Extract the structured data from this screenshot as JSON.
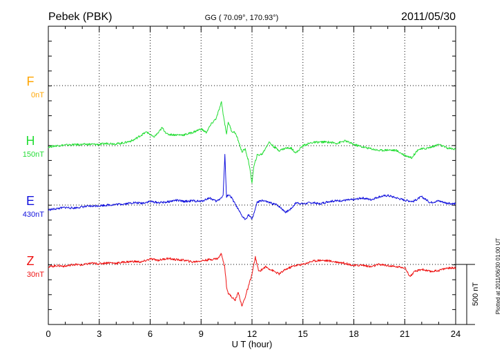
{
  "header": {
    "station": "Pebek (PBK)",
    "coords": "GG ( 70.09°, 170.93°)",
    "date": "2011/05/30"
  },
  "footer": {
    "plotted": "Plotted at 2011/06/30 01:00 UT"
  },
  "chart_data": {
    "type": "line",
    "xlabel": "U T (hour)",
    "xlim": [
      0,
      24
    ],
    "xticks": [
      0,
      3,
      6,
      9,
      12,
      15,
      18,
      21,
      24
    ],
    "scale_bar": {
      "label": "500 nT",
      "value_nT": 500
    },
    "series": [
      {
        "name": "F",
        "baseline": "0nT",
        "color": "#ffa500",
        "x": [],
        "y": []
      },
      {
        "name": "H",
        "baseline": "150nT",
        "color": "#22dd33",
        "x": [
          0,
          0.5,
          1,
          1.5,
          2,
          2.5,
          3,
          3.5,
          4,
          4.5,
          5,
          5.5,
          5.8,
          6.2,
          6.5,
          6.7,
          7,
          7.5,
          8,
          8.5,
          9,
          9.3,
          9.6,
          9.9,
          10.2,
          10.35,
          10.5,
          10.6,
          10.8,
          11,
          11.2,
          11.4,
          11.6,
          11.8,
          12,
          12.1,
          12.3,
          12.6,
          13,
          13.3,
          13.6,
          14,
          14.3,
          14.6,
          15,
          15.5,
          16,
          16.5,
          17,
          17.5,
          18,
          18.5,
          19,
          19.5,
          20,
          20.5,
          21,
          21.4,
          21.8,
          22.2,
          22.6,
          23,
          23.5,
          24
        ],
        "y": [
          -10,
          0,
          5,
          8,
          10,
          12,
          10,
          20,
          15,
          25,
          45,
          90,
          115,
          70,
          110,
          150,
          95,
          90,
          90,
          110,
          140,
          110,
          180,
          230,
          360,
          220,
          100,
          200,
          120,
          110,
          40,
          -50,
          -30,
          -130,
          -310,
          -180,
          -80,
          -70,
          30,
          -10,
          -40,
          -20,
          -20,
          -60,
          0,
          25,
          30,
          30,
          20,
          40,
          10,
          -10,
          -25,
          -40,
          -35,
          -40,
          -80,
          -100,
          -30,
          -25,
          -10,
          10,
          -20,
          -30
        ]
      },
      {
        "name": "E",
        "baseline": "430nT",
        "color": "#1010dd",
        "x": [
          0,
          0.5,
          1,
          1.5,
          2,
          2.5,
          3,
          3.5,
          4,
          4.5,
          5,
          5.5,
          6,
          6.5,
          7,
          7.5,
          8,
          8.5,
          9,
          9.5,
          9.9,
          10.1,
          10.3,
          10.4,
          10.5,
          10.6,
          10.8,
          11,
          11.2,
          11.4,
          11.6,
          11.8,
          12,
          12.3,
          12.6,
          13,
          13.5,
          14,
          14.3,
          14.6,
          15,
          15.5,
          16,
          16.5,
          17,
          17.5,
          18,
          18.5,
          19,
          19.5,
          20,
          20.5,
          21,
          21.5,
          22,
          22.5,
          23,
          23.5,
          24
        ],
        "y": [
          -40,
          -30,
          -20,
          -25,
          -15,
          -10,
          -5,
          0,
          5,
          10,
          20,
          15,
          30,
          20,
          25,
          40,
          30,
          35,
          30,
          60,
          30,
          50,
          80,
          420,
          60,
          90,
          60,
          10,
          -40,
          -90,
          -120,
          -80,
          -120,
          20,
          40,
          20,
          0,
          -60,
          -30,
          20,
          10,
          20,
          10,
          30,
          35,
          40,
          45,
          60,
          45,
          70,
          80,
          60,
          40,
          30,
          70,
          20,
          35,
          15,
          10
        ]
      },
      {
        "name": "Z",
        "baseline": "30nT",
        "color": "#ee1111",
        "x": [
          0,
          0.5,
          1,
          1.5,
          2,
          2.5,
          3,
          3.5,
          4,
          4.5,
          5,
          5.5,
          6,
          6.5,
          7,
          7.5,
          8,
          8.5,
          9,
          9.5,
          10,
          10.2,
          10.4,
          10.5,
          10.6,
          10.8,
          11,
          11.2,
          11.4,
          11.6,
          11.8,
          12,
          12.2,
          12.4,
          12.8,
          13.2,
          13.6,
          14,
          14.5,
          15,
          15.5,
          16,
          16.5,
          17,
          17.5,
          18,
          18.5,
          19,
          19.5,
          20,
          20.5,
          21,
          21.3,
          21.6,
          22,
          22.5,
          23,
          23.5,
          24
        ],
        "y": [
          -20,
          -10,
          -15,
          0,
          -5,
          10,
          5,
          15,
          10,
          20,
          25,
          20,
          45,
          35,
          50,
          40,
          35,
          20,
          30,
          40,
          50,
          90,
          -30,
          -180,
          -240,
          -270,
          -300,
          -230,
          -350,
          -270,
          -180,
          -80,
          60,
          -60,
          -20,
          -50,
          -80,
          -40,
          -10,
          0,
          25,
          35,
          30,
          20,
          10,
          -10,
          -5,
          -20,
          0,
          -10,
          -20,
          -25,
          -100,
          -60,
          -40,
          -60,
          -50,
          -30,
          -30
        ]
      }
    ]
  }
}
